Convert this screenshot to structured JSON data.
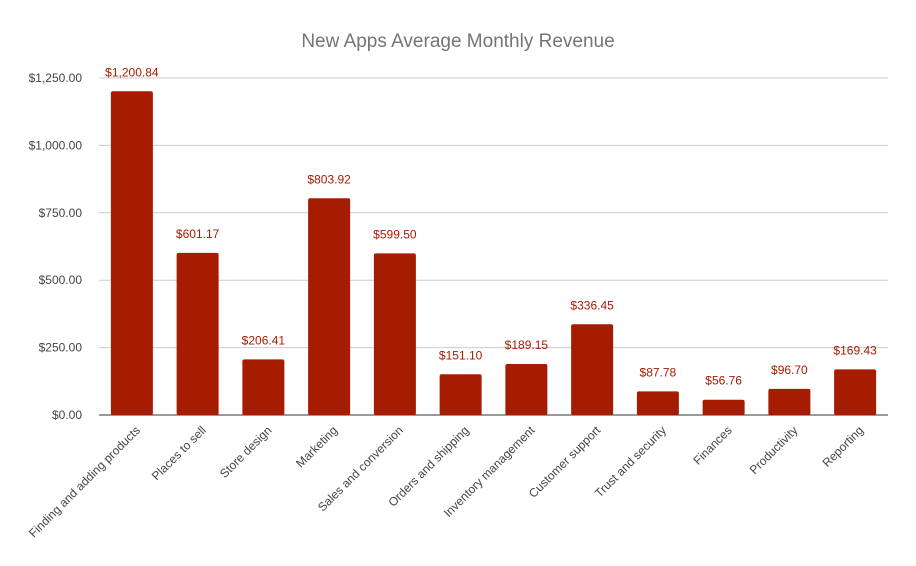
{
  "chart_data": {
    "type": "bar",
    "title": "New Apps Average Monthly Revenue",
    "xlabel": "",
    "ylabel": "",
    "categories": [
      "Finding and adding products",
      "Places to sell",
      "Store design",
      "Marketing",
      "Sales and conversion",
      "Orders and shipping",
      "Inventory management",
      "Customer support",
      "Trust and security",
      "Finances",
      "Productivity",
      "Reporting"
    ],
    "values": [
      1200.84,
      601.17,
      206.41,
      803.92,
      599.5,
      151.1,
      189.15,
      336.45,
      87.78,
      56.76,
      96.7,
      169.43
    ],
    "data_labels": [
      "$1,200.84",
      "$601.17",
      "$206.41",
      "$803.92",
      "$599.50",
      "$151.10",
      "$189.15",
      "$336.45",
      "$87.78",
      "$56.76",
      "$96.70",
      "$169.43"
    ],
    "ylim": [
      0,
      1250
    ],
    "yticks": [
      0,
      250,
      500,
      750,
      1000,
      1250
    ],
    "ytick_labels": [
      "$0.00",
      "$250.00",
      "$500.00",
      "$750.00",
      "$1,000.00",
      "$1,250.00"
    ],
    "grid": true,
    "legend": "none",
    "bar_color": "#a61c00",
    "label_color": "#a61c00",
    "grid_color": "#cccccc",
    "axis_color": "#333333"
  }
}
